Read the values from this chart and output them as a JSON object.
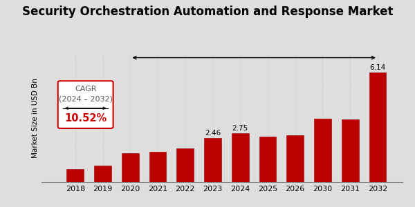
{
  "title": "Security Orchestration Automation and Response Market",
  "ylabel": "Market Size in USD Bn",
  "categories": [
    "2018",
    "2019",
    "2020",
    "2021",
    "2022",
    "2023",
    "2024",
    "2025",
    "2026",
    "2030",
    "2031",
    "2032"
  ],
  "values": [
    0.72,
    0.92,
    1.62,
    1.72,
    1.9,
    2.46,
    2.75,
    2.55,
    2.62,
    3.55,
    3.52,
    6.14
  ],
  "bar_color": "#BB0000",
  "bar_edge_color": "#990000",
  "background_color": "#DEDEDE",
  "title_fontsize": 12,
  "ylabel_fontsize": 7.5,
  "tick_fontsize": 8,
  "cagr_line1": "CAGR",
  "cagr_line2": "(2024 – 2032)",
  "cagr_value": "10.52%",
  "cagr_value_color": "#CC0000",
  "labeled_bars": {
    "2023": "2.46",
    "2024": "2.75",
    "2032": "6.14"
  },
  "bottom_bar_color": "#CC0000",
  "ylim": [
    0,
    7.2
  ],
  "grid_color": "#C8C8C8"
}
